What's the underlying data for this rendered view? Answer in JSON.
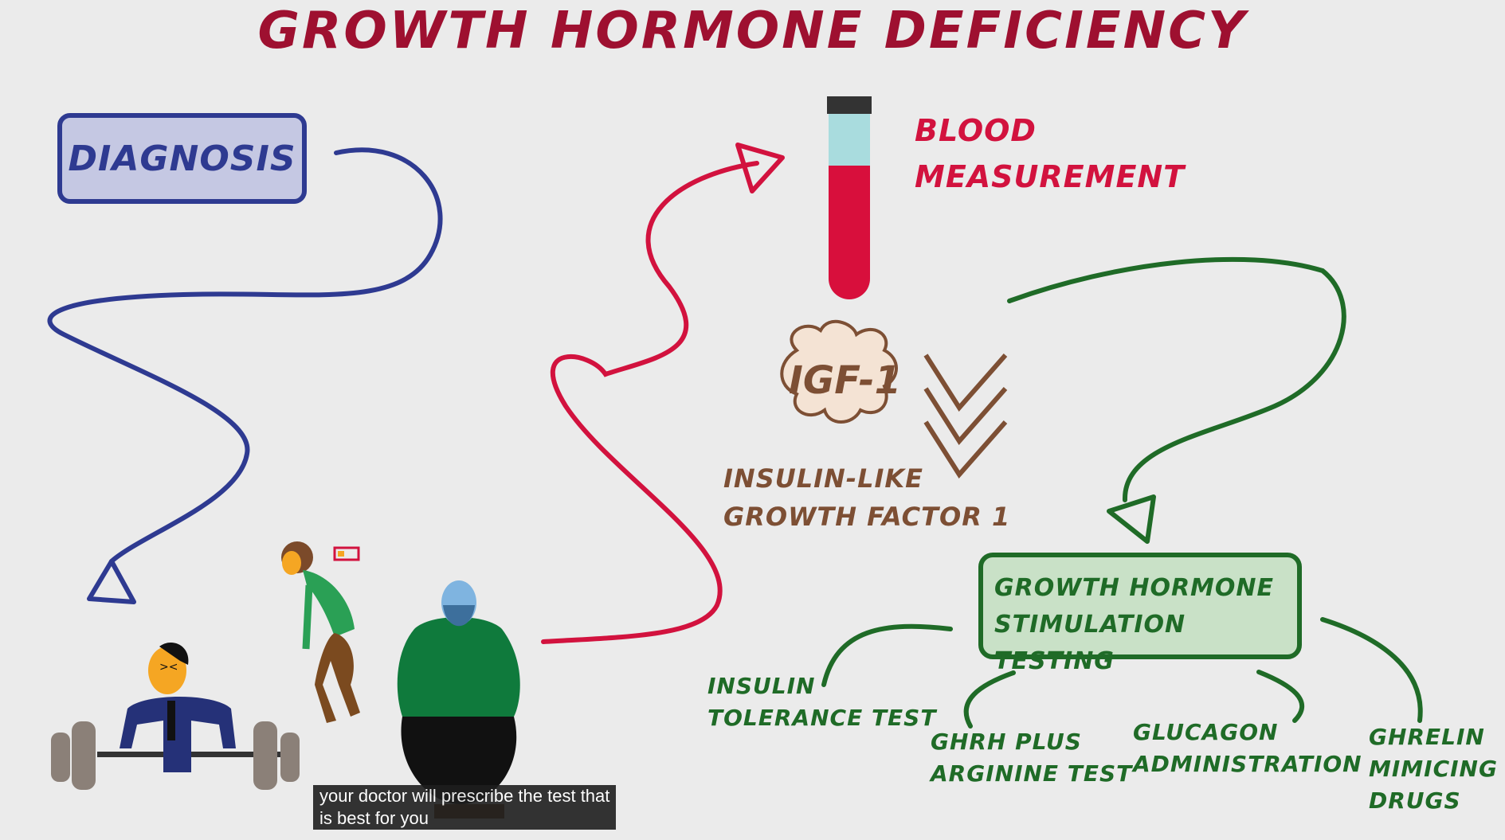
{
  "title": "GROWTH HORMONE DEFICIENCY",
  "diagnosis": "DIAGNOSIS",
  "blood": {
    "line1": "BLOOD",
    "line2": "MEASUREMENT"
  },
  "igf": {
    "badge": "IGF-1",
    "line1": "INSULIN-LIKE",
    "line2": "GROWTH FACTOR 1"
  },
  "stimulation": {
    "line1": "GROWTH HORMONE",
    "line2": "STIMULATION TESTING"
  },
  "tests": {
    "insulin": {
      "line1": "INSULIN",
      "line2": "TOLERANCE TEST"
    },
    "ghrh": {
      "line1": "GHRH PLUS",
      "line2": "ARGININE TEST"
    },
    "glucagon": {
      "line1": "GLUCAGON",
      "line2": "ADMINISTRATION"
    },
    "ghrelin": {
      "line1": "GHRELIN",
      "line2": "MIMICING",
      "line3": "DRUGS"
    }
  },
  "caption": {
    "line1": "your doctor will prescribe the test that",
    "line2": "is best for you"
  },
  "colors": {
    "red": "#d2123e",
    "title": "#9e1030",
    "blue": "#2e3a91",
    "green": "#1f6b27",
    "brown": "#7d4f34"
  }
}
